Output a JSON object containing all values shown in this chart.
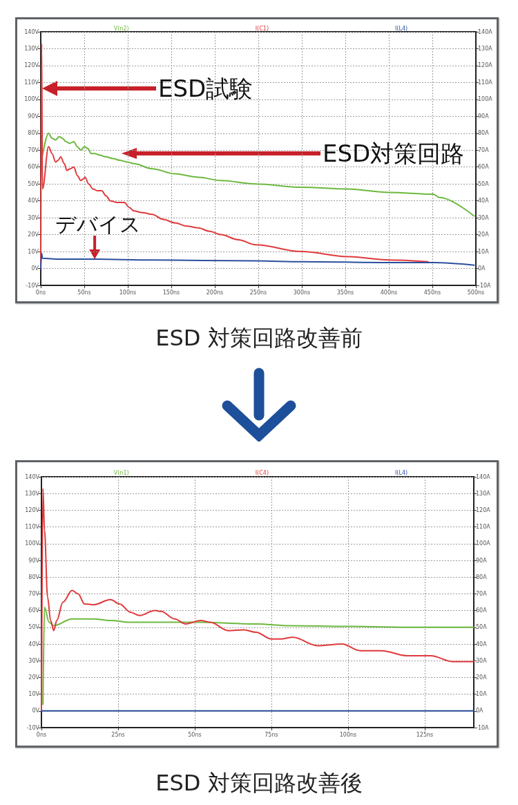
{
  "chart_data": [
    {
      "type": "line",
      "title": "ESD 対策回路改善前",
      "legend": "top",
      "grid": true,
      "xlim": [
        0,
        500
      ],
      "xticks": [
        {
          "value": 0,
          "label": "0ns"
        },
        {
          "value": 50,
          "label": "50ns"
        },
        {
          "value": 100,
          "label": "100ns"
        },
        {
          "value": 150,
          "label": "150ns"
        },
        {
          "value": 200,
          "label": "200ns"
        },
        {
          "value": 250,
          "label": "250ns"
        },
        {
          "value": 300,
          "label": "300ns"
        },
        {
          "value": 350,
          "label": "350ns"
        },
        {
          "value": 400,
          "label": "400ns"
        },
        {
          "value": 450,
          "label": "450ns"
        },
        {
          "value": 500,
          "label": "500ns"
        }
      ],
      "ylim": [
        -10,
        140
      ],
      "yticks": [
        {
          "value": -10,
          "label": "-10V"
        },
        {
          "value": 0,
          "label": "0V"
        },
        {
          "value": 10,
          "label": "10V"
        },
        {
          "value": 20,
          "label": "20V"
        },
        {
          "value": 30,
          "label": "30V"
        },
        {
          "value": 40,
          "label": "40V"
        },
        {
          "value": 50,
          "label": "50V"
        },
        {
          "value": 60,
          "label": "60V"
        },
        {
          "value": 70,
          "label": "70V"
        },
        {
          "value": 80,
          "label": "80V"
        },
        {
          "value": 90,
          "label": "90V"
        },
        {
          "value": 100,
          "label": "100V"
        },
        {
          "value": 110,
          "label": "110V"
        },
        {
          "value": 120,
          "label": "120V"
        },
        {
          "value": 130,
          "label": "130V"
        },
        {
          "value": 140,
          "label": "140V"
        }
      ],
      "y2lim": [
        -10,
        140
      ],
      "y2ticks": [
        {
          "value": -10,
          "label": "-10A"
        },
        {
          "value": 0,
          "label": "0A"
        },
        {
          "value": 10,
          "label": "10A"
        },
        {
          "value": 20,
          "label": "20A"
        },
        {
          "value": 30,
          "label": "30A"
        },
        {
          "value": 40,
          "label": "40A"
        },
        {
          "value": 50,
          "label": "50A"
        },
        {
          "value": 60,
          "label": "60A"
        },
        {
          "value": 70,
          "label": "70A"
        },
        {
          "value": 80,
          "label": "80A"
        },
        {
          "value": 90,
          "label": "90A"
        },
        {
          "value": 100,
          "label": "100A"
        },
        {
          "value": 110,
          "label": "110A"
        },
        {
          "value": 120,
          "label": "120A"
        },
        {
          "value": 130,
          "label": "130A"
        },
        {
          "value": 140,
          "label": "140A"
        }
      ],
      "series": [
        {
          "name": "V(n2)",
          "color": "#6cb83e",
          "x": [
            2,
            9,
            13,
            17,
            21,
            25,
            29,
            33,
            38,
            42,
            46,
            50,
            54,
            58,
            62,
            68,
            75,
            83,
            91,
            99,
            107,
            128,
            154,
            181,
            207,
            247,
            300,
            353,
            400,
            451,
            458,
            498
          ],
          "values": [
            67,
            80,
            77,
            76,
            78,
            77,
            75,
            74,
            75,
            72,
            70,
            72,
            71,
            68,
            68,
            67,
            66,
            65,
            64,
            63,
            62,
            59,
            56,
            54,
            52,
            50,
            48,
            47,
            45,
            44,
            42,
            31
          ]
        },
        {
          "name": "I(C1)",
          "color": "#e0393b",
          "x": [
            0,
            1,
            2,
            9,
            13,
            17,
            20,
            23,
            27,
            30,
            34,
            38,
            42,
            46,
            49,
            51,
            55,
            60,
            65,
            70,
            75,
            80,
            88,
            96,
            102,
            107,
            117,
            128,
            141,
            154,
            168,
            181,
            194,
            207,
            227,
            247,
            300,
            353,
            400,
            445
          ],
          "values": [
            0,
            133,
            47,
            72,
            68,
            63,
            64,
            66,
            62,
            58,
            59,
            60,
            55,
            52,
            53,
            54,
            50,
            47,
            46,
            46,
            43,
            40,
            39,
            39,
            36,
            34,
            33,
            32,
            29,
            27,
            25,
            24,
            22,
            20,
            17,
            14,
            10,
            7,
            5,
            4
          ]
        },
        {
          "name": "I(L4)",
          "color": "#2b4f9e",
          "x": [
            0,
            1,
            2,
            22,
            62,
            128,
            247,
            300,
            400,
            451,
            498
          ],
          "values": [
            0,
            9,
            6,
            5.5,
            5.5,
            5,
            4.5,
            4,
            3.5,
            3.5,
            2
          ]
        }
      ],
      "annotations": [
        "ESD試験",
        "ESD対策回路",
        {
          "text": "デバイス",
          "x": 62,
          "y": 5.5
        }
      ]
    },
    {
      "type": "line",
      "title": "ESD 対策回路改善後",
      "legend": "top",
      "grid": true,
      "xlim": [
        0,
        141
      ],
      "xticks": [
        {
          "value": 0,
          "label": "0ns"
        },
        {
          "value": 25,
          "label": "25ns"
        },
        {
          "value": 50,
          "label": "50ns"
        },
        {
          "value": 75,
          "label": "75ns"
        },
        {
          "value": 100,
          "label": "100ns"
        },
        {
          "value": 125,
          "label": "125ns"
        }
      ],
      "ylim": [
        -10,
        140
      ],
      "yticks": [
        {
          "value": -10,
          "label": "-10V"
        },
        {
          "value": 0,
          "label": "0V"
        },
        {
          "value": 10,
          "label": "10V"
        },
        {
          "value": 20,
          "label": "20V"
        },
        {
          "value": 30,
          "label": "30V"
        },
        {
          "value": 40,
          "label": "40V"
        },
        {
          "value": 50,
          "label": "50V"
        },
        {
          "value": 60,
          "label": "60V"
        },
        {
          "value": 70,
          "label": "70V"
        },
        {
          "value": 80,
          "label": "80V"
        },
        {
          "value": 90,
          "label": "90V"
        },
        {
          "value": 100,
          "label": "100V"
        },
        {
          "value": 110,
          "label": "110V"
        },
        {
          "value": 120,
          "label": "120V"
        },
        {
          "value": 130,
          "label": "130V"
        },
        {
          "value": 140,
          "label": "140V"
        }
      ],
      "y2lim": [
        -10,
        140
      ],
      "y2ticks": [
        {
          "value": -10,
          "label": "-10A"
        },
        {
          "value": 0,
          "label": "0A"
        },
        {
          "value": 10,
          "label": "10A"
        },
        {
          "value": 20,
          "label": "20A"
        },
        {
          "value": 30,
          "label": "30A"
        },
        {
          "value": 40,
          "label": "40A"
        },
        {
          "value": 50,
          "label": "50A"
        },
        {
          "value": 60,
          "label": "60A"
        },
        {
          "value": 70,
          "label": "70A"
        },
        {
          "value": 80,
          "label": "80A"
        },
        {
          "value": 90,
          "label": "90A"
        },
        {
          "value": 100,
          "label": "100A"
        },
        {
          "value": 110,
          "label": "110A"
        },
        {
          "value": 120,
          "label": "120A"
        },
        {
          "value": 130,
          "label": "130A"
        },
        {
          "value": 140,
          "label": "140A"
        }
      ],
      "series": [
        {
          "name": "V(n1)",
          "color": "#6cb83e",
          "x": [
            0.5,
            1,
            2.5,
            4,
            10,
            17,
            23,
            28.5,
            40,
            51,
            70,
            81,
            100,
            122,
            141
          ],
          "values": [
            4,
            62,
            53,
            51,
            55,
            55,
            54,
            53,
            53,
            53,
            52,
            51,
            50.5,
            50,
            50
          ]
        },
        {
          "name": "I(C4)",
          "color": "#e0393b",
          "x": [
            0,
            0.5,
            1,
            2,
            3,
            4,
            5,
            7,
            10,
            12,
            14,
            17,
            22.5,
            25.5,
            29,
            32,
            37,
            39,
            43.5,
            47,
            52,
            55,
            61,
            66,
            70,
            75,
            78,
            82,
            90,
            98,
            104,
            111,
            119,
            127,
            134,
            141
          ],
          "values": [
            0,
            133,
            108,
            68,
            54,
            48,
            54,
            65,
            72,
            70,
            64,
            63.5,
            66.5,
            64,
            59,
            57,
            60,
            59.5,
            55,
            52,
            54,
            53,
            48,
            48.5,
            47,
            43,
            43,
            44,
            39,
            40,
            36,
            36,
            33,
            33,
            29.5,
            29.5
          ]
        },
        {
          "name": "I(L4)",
          "color": "#2b4f9e",
          "x": [
            0,
            141
          ],
          "values": [
            0,
            0
          ]
        }
      ]
    }
  ]
}
